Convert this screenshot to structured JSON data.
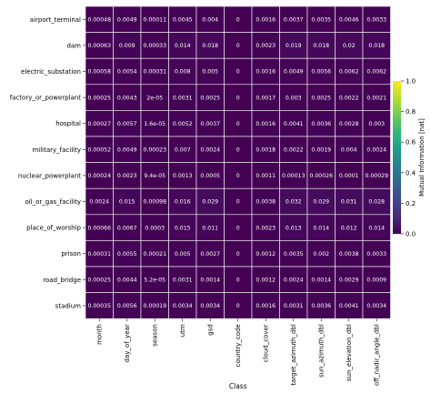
{
  "chart_data": {
    "type": "heatmap",
    "title": "",
    "xlabel": "Class",
    "ylabel": "",
    "x": [
      "month",
      "day_of_year",
      "season",
      "utm",
      "gsd",
      "country_code",
      "cloud_cover",
      "target_azimuth_dbl",
      "sun_azimuth_dbl",
      "sun_elevation_dbl",
      "off_nadir_angle_dbl"
    ],
    "y": [
      "airport_terminal",
      "dam",
      "electric_substation",
      "factory_or_powerplant",
      "hospital",
      "military_facility",
      "nuclear_powerplant",
      "oil_or_gas_facility",
      "place_of_worship",
      "prison",
      "road_bridge",
      "stadium"
    ],
    "values": [
      [
        0.00048,
        0.0049,
        0.00011,
        0.0045,
        0.004,
        0,
        0.0016,
        0.0037,
        0.0035,
        0.0046,
        0.0033
      ],
      [
        0.00063,
        0.009,
        0.00033,
        0.014,
        0.018,
        0,
        0.0023,
        0.019,
        0.018,
        0.02,
        0.018
      ],
      [
        0.00058,
        0.0054,
        0.00031,
        0.008,
        0.005,
        0,
        0.0016,
        0.0049,
        0.0056,
        0.0062,
        0.0062
      ],
      [
        0.00025,
        0.0043,
        2e-05,
        0.0031,
        0.0025,
        0,
        0.0017,
        0.003,
        0.0025,
        0.0022,
        0.0021
      ],
      [
        0.00027,
        0.0057,
        1.6e-05,
        0.0052,
        0.0037,
        0,
        0.0016,
        0.0041,
        0.0036,
        0.0028,
        0.003
      ],
      [
        0.00052,
        0.0049,
        0.00023,
        0.007,
        0.0024,
        0,
        0.0018,
        0.0022,
        0.0019,
        0.004,
        0.0024
      ],
      [
        0.00024,
        0.0023,
        9.4e-05,
        0.0013,
        0.0005,
        0,
        0.0011,
        0.00013,
        0.00026,
        0.0001,
        0.00029
      ],
      [
        0.0024,
        0.015,
        0.00098,
        0.016,
        0.029,
        0,
        0.0038,
        0.032,
        0.029,
        0.031,
        0.028
      ],
      [
        0.00066,
        0.0067,
        0.0003,
        0.015,
        0.011,
        0,
        0.0023,
        0.013,
        0.014,
        0.012,
        0.014
      ],
      [
        0.00031,
        0.0055,
        0.00021,
        0.005,
        0.0027,
        0,
        0.0012,
        0.0035,
        0.002,
        0.0038,
        0.0033
      ],
      [
        0.00025,
        0.0044,
        5.2e-05,
        0.0031,
        0.0014,
        0,
        0.0012,
        0.0024,
        0.0014,
        0.0029,
        0.0009
      ],
      [
        0.00035,
        0.0056,
        0.00019,
        0.0034,
        0.0034,
        0,
        0.0016,
        0.0031,
        0.0036,
        0.0041,
        0.0034
      ]
    ],
    "labels": [
      [
        "0.00048",
        "0.0049",
        "0.00011",
        "0.0045",
        "0.004",
        "0",
        "0.0016",
        "0.0037",
        "0.0035",
        "0.0046",
        "0.0033"
      ],
      [
        "0.00063",
        "0.009",
        "0.00033",
        "0.014",
        "0.018",
        "0",
        "0.0023",
        "0.019",
        "0.018",
        "0.02",
        "0.018"
      ],
      [
        "0.00058",
        "0.0054",
        "0.00031",
        "0.008",
        "0.005",
        "0",
        "0.0016",
        "0.0049",
        "0.0056",
        "0.0062",
        "0.0062"
      ],
      [
        "0.00025",
        "0.0043",
        "2e-05",
        "0.0031",
        "0.0025",
        "0",
        "0.0017",
        "0.003",
        "0.0025",
        "0.0022",
        "0.0021"
      ],
      [
        "0.00027",
        "0.0057",
        "1.6e-05",
        "0.0052",
        "0.0037",
        "0",
        "0.0016",
        "0.0041",
        "0.0036",
        "0.0028",
        "0.003"
      ],
      [
        "0.00052",
        "0.0049",
        "0.00023",
        "0.007",
        "0.0024",
        "0",
        "0.0018",
        "0.0022",
        "0.0019",
        "0.004",
        "0.0024"
      ],
      [
        "0.00024",
        "0.0023",
        "9.4e-05",
        "0.0013",
        "0.0005",
        "0",
        "0.0011",
        "0.00013",
        "0.00026",
        "0.0001",
        "0.00029"
      ],
      [
        "0.0024",
        "0.015",
        "0.00098",
        "0.016",
        "0.029",
        "0",
        "0.0038",
        "0.032",
        "0.029",
        "0.031",
        "0.028"
      ],
      [
        "0.00066",
        "0.0067",
        "0.0003",
        "0.015",
        "0.011",
        "0",
        "0.0023",
        "0.013",
        "0.014",
        "0.012",
        "0.014"
      ],
      [
        "0.00031",
        "0.0055",
        "0.00021",
        "0.005",
        "0.0027",
        "0",
        "0.0012",
        "0.0035",
        "0.002",
        "0.0038",
        "0.0033"
      ],
      [
        "0.00025",
        "0.0044",
        "5.2e-05",
        "0.0031",
        "0.0014",
        "0",
        "0.0012",
        "0.0024",
        "0.0014",
        "0.0029",
        "0.0009"
      ],
      [
        "0.00035",
        "0.0056",
        "0.00019",
        "0.0034",
        "0.0034",
        "0",
        "0.0016",
        "0.0031",
        "0.0036",
        "0.0041",
        "0.0034"
      ]
    ],
    "colorbar": {
      "label": "Mutual Information [nat]",
      "range": [
        0.0,
        1.0
      ],
      "ticks": [
        "0.0",
        "0.2",
        "0.4",
        "0.6",
        "0.8",
        "1.0"
      ],
      "colormap": "viridis"
    },
    "grid": true,
    "colors": {
      "grid": "#ffffff",
      "cell_text": "#ffffff",
      "colormap_stops": [
        "#440154",
        "#482878",
        "#3e4989",
        "#31688e",
        "#26828e",
        "#1f9e89",
        "#35b779",
        "#6ece58",
        "#b5de2b",
        "#fde725"
      ]
    }
  }
}
